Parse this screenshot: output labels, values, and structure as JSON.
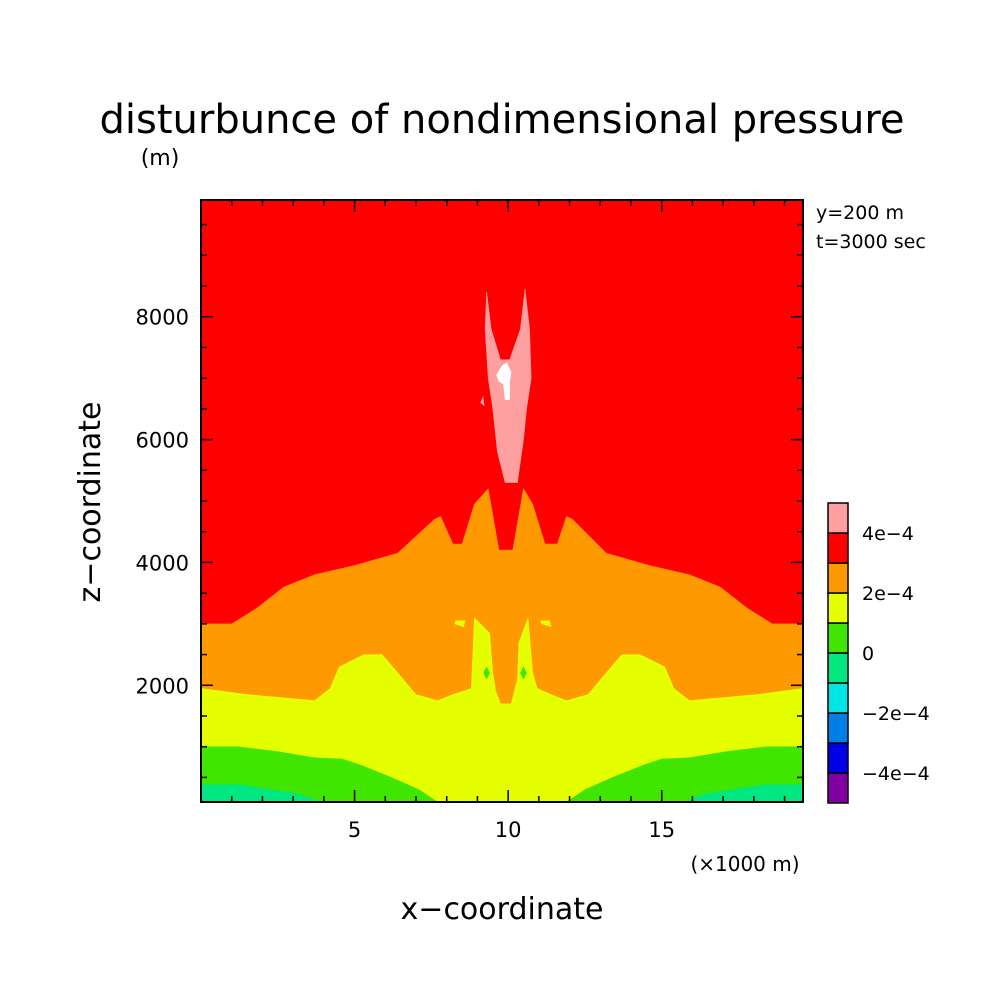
{
  "chart_data": {
    "type": "heatmap",
    "title": "disturbunce of nondimensional pressure",
    "units_label": "(m)",
    "xlabel": "x−coordinate",
    "ylabel": "z−coordinate",
    "x_units_label": "(×1000 m)",
    "info_lines": [
      "y=200 m",
      "t=3000 sec"
    ],
    "xlim": [
      0,
      19.6
    ],
    "ylim": [
      100,
      9900
    ],
    "x_ticks": [
      {
        "value": 5,
        "label": "5"
      },
      {
        "value": 10,
        "label": "10"
      },
      {
        "value": 15,
        "label": "15"
      }
    ],
    "y_ticks": [
      {
        "value": 2000,
        "label": "2000"
      },
      {
        "value": 4000,
        "label": "4000"
      },
      {
        "value": 6000,
        "label": "6000"
      },
      {
        "value": 8000,
        "label": "8000"
      }
    ],
    "colorbar": {
      "bins": [
        {
          "color": "#8000a0",
          "label": "−4e−4"
        },
        {
          "color": "#0000e6",
          "label": ""
        },
        {
          "color": "#0080e6",
          "label": "−2e−4"
        },
        {
          "color": "#00e6e6",
          "label": ""
        },
        {
          "color": "#00e680",
          "label": "0"
        },
        {
          "color": "#40e600",
          "label": ""
        },
        {
          "color": "#e6ff00",
          "label": "2e−4"
        },
        {
          "color": "#ff9900",
          "label": ""
        },
        {
          "color": "#ff0000",
          "label": "4e−4"
        },
        {
          "color": "#ffa0a0",
          "label": ""
        }
      ]
    },
    "regions": [
      {
        "name": "region-gt-4e-4",
        "color": "#ff0000",
        "points": [
          [
            0,
            100
          ],
          [
            19.6,
            100
          ],
          [
            19.6,
            9900
          ],
          [
            0,
            9900
          ]
        ]
      },
      {
        "name": "region-2e-4-to-4e-4",
        "color": "#ff9900",
        "points": [
          [
            0,
            3000
          ],
          [
            1,
            3000
          ],
          [
            1.8,
            3250
          ],
          [
            2.7,
            3600
          ],
          [
            3.7,
            3800
          ],
          [
            5,
            3950
          ],
          [
            6.4,
            4150
          ],
          [
            7.6,
            4700
          ],
          [
            7.8,
            4750
          ],
          [
            8.2,
            4300
          ],
          [
            8.5,
            4300
          ],
          [
            8.9,
            4950
          ],
          [
            9.35,
            5200
          ],
          [
            9.7,
            4200
          ],
          [
            10.15,
            4200
          ],
          [
            10.5,
            5200
          ],
          [
            10.8,
            4950
          ],
          [
            11.2,
            4300
          ],
          [
            11.6,
            4300
          ],
          [
            11.9,
            4750
          ],
          [
            12.1,
            4700
          ],
          [
            13.2,
            4150
          ],
          [
            14.6,
            3950
          ],
          [
            15.9,
            3800
          ],
          [
            16.9,
            3600
          ],
          [
            17.8,
            3250
          ],
          [
            18.6,
            3000
          ],
          [
            19.6,
            3000
          ],
          [
            19.6,
            100
          ],
          [
            0,
            100
          ]
        ]
      },
      {
        "name": "region-0-to-2e-4",
        "color": "#e6ff00",
        "points": [
          [
            0,
            1950
          ],
          [
            1.5,
            1850
          ],
          [
            3.7,
            1750
          ],
          [
            4.2,
            1950
          ],
          [
            4.5,
            2300
          ],
          [
            5.3,
            2500
          ],
          [
            5.9,
            2500
          ],
          [
            6.5,
            2150
          ],
          [
            7,
            1850
          ],
          [
            7.7,
            1750
          ],
          [
            8.2,
            1850
          ],
          [
            8.8,
            1950
          ],
          [
            8.9,
            3100
          ],
          [
            9.4,
            2850
          ],
          [
            9.5,
            2200
          ],
          [
            9.6,
            1900
          ],
          [
            9.75,
            1700
          ],
          [
            10.1,
            1700
          ],
          [
            10.3,
            2100
          ],
          [
            10.35,
            2700
          ],
          [
            10.65,
            3100
          ],
          [
            10.8,
            2200
          ],
          [
            10.95,
            1950
          ],
          [
            11.4,
            1850
          ],
          [
            11.9,
            1750
          ],
          [
            12.6,
            1850
          ],
          [
            13.1,
            2150
          ],
          [
            13.7,
            2500
          ],
          [
            14.3,
            2500
          ],
          [
            15.1,
            2300
          ],
          [
            15.4,
            1950
          ],
          [
            15.9,
            1750
          ],
          [
            18.1,
            1850
          ],
          [
            19.6,
            1950
          ],
          [
            19.6,
            100
          ],
          [
            0,
            100
          ]
        ]
      },
      {
        "name": "region-neg2e-4-to-0",
        "color": "#40e600",
        "points": [
          [
            0,
            1000
          ],
          [
            1.2,
            1000
          ],
          [
            2.5,
            920
          ],
          [
            3.7,
            820
          ],
          [
            4.6,
            800
          ],
          [
            5.2,
            700
          ],
          [
            6.2,
            500
          ],
          [
            7.1,
            300
          ],
          [
            7.7,
            100
          ],
          [
            0,
            100
          ]
        ]
      },
      {
        "name": "region-neg2e-4-to-0",
        "color": "#40e600",
        "points": [
          [
            19.6,
            1000
          ],
          [
            18.4,
            1000
          ],
          [
            17.1,
            920
          ],
          [
            15.9,
            820
          ],
          [
            15,
            800
          ],
          [
            14.4,
            700
          ],
          [
            13.4,
            500
          ],
          [
            12.5,
            300
          ],
          [
            11.9,
            100
          ],
          [
            19.6,
            100
          ]
        ]
      },
      {
        "name": "region-neg4e-4-to-neg2e-4",
        "color": "#00e680",
        "points": [
          [
            0,
            380
          ],
          [
            1.3,
            380
          ],
          [
            2.3,
            300
          ],
          [
            3.2,
            230
          ],
          [
            3.9,
            100
          ],
          [
            0,
            100
          ]
        ]
      },
      {
        "name": "region-neg4e-4-to-neg2e-4",
        "color": "#00e680",
        "points": [
          [
            19.6,
            380
          ],
          [
            18.3,
            380
          ],
          [
            17.3,
            300
          ],
          [
            16.4,
            230
          ],
          [
            15.7,
            100
          ],
          [
            19.6,
            100
          ]
        ]
      },
      {
        "name": "region-gt-4e-4-pink",
        "color": "#ffa0a0",
        "points": [
          [
            9.3,
            8400
          ],
          [
            9.45,
            7800
          ],
          [
            9.75,
            7300
          ],
          [
            10.05,
            7300
          ],
          [
            10.4,
            7800
          ],
          [
            10.55,
            8450
          ],
          [
            10.7,
            7800
          ],
          [
            10.75,
            7000
          ],
          [
            10.6,
            6500
          ],
          [
            10.5,
            6000
          ],
          [
            10.3,
            5300
          ],
          [
            9.9,
            5300
          ],
          [
            9.65,
            5800
          ],
          [
            9.5,
            6500
          ],
          [
            9.35,
            7000
          ],
          [
            9.25,
            7800
          ]
        ]
      },
      {
        "name": "region-max",
        "color": "#ffffff",
        "points": [
          [
            9.62,
            7050
          ],
          [
            9.8,
            7200
          ],
          [
            9.95,
            7250
          ],
          [
            10.1,
            7100
          ],
          [
            10.05,
            6950
          ],
          [
            10.05,
            6650
          ],
          [
            9.9,
            6650
          ],
          [
            9.85,
            6900
          ],
          [
            9.7,
            6950
          ]
        ]
      },
      {
        "name": "small-cell",
        "color": "#e6ff00",
        "points": [
          [
            8.25,
            3000
          ],
          [
            8.55,
            2950
          ],
          [
            8.6,
            3050
          ],
          [
            8.3,
            3050
          ]
        ]
      },
      {
        "name": "small-cell",
        "color": "#e6ff00",
        "points": [
          [
            11.1,
            3000
          ],
          [
            11.4,
            2950
          ],
          [
            11.35,
            3050
          ],
          [
            11.05,
            3050
          ]
        ]
      },
      {
        "name": "small-cell",
        "color": "#ff9900",
        "points": [
          [
            9.6,
            1920
          ],
          [
            9.7,
            2300
          ],
          [
            9.9,
            2400
          ],
          [
            10,
            2000
          ],
          [
            9.85,
            1750
          ]
        ]
      },
      {
        "name": "small-cell",
        "color": "#40e600",
        "points": [
          [
            9.2,
            2200
          ],
          [
            9.3,
            2300
          ],
          [
            9.4,
            2200
          ],
          [
            9.3,
            2100
          ]
        ]
      },
      {
        "name": "small-cell",
        "color": "#40e600",
        "points": [
          [
            10.4,
            2200
          ],
          [
            10.5,
            2300
          ],
          [
            10.6,
            2200
          ],
          [
            10.5,
            2100
          ]
        ]
      },
      {
        "name": "small-cell",
        "color": "#ffa0a0",
        "points": [
          [
            9.1,
            6600
          ],
          [
            9.18,
            6700
          ],
          [
            9.22,
            6550
          ]
        ]
      }
    ]
  }
}
